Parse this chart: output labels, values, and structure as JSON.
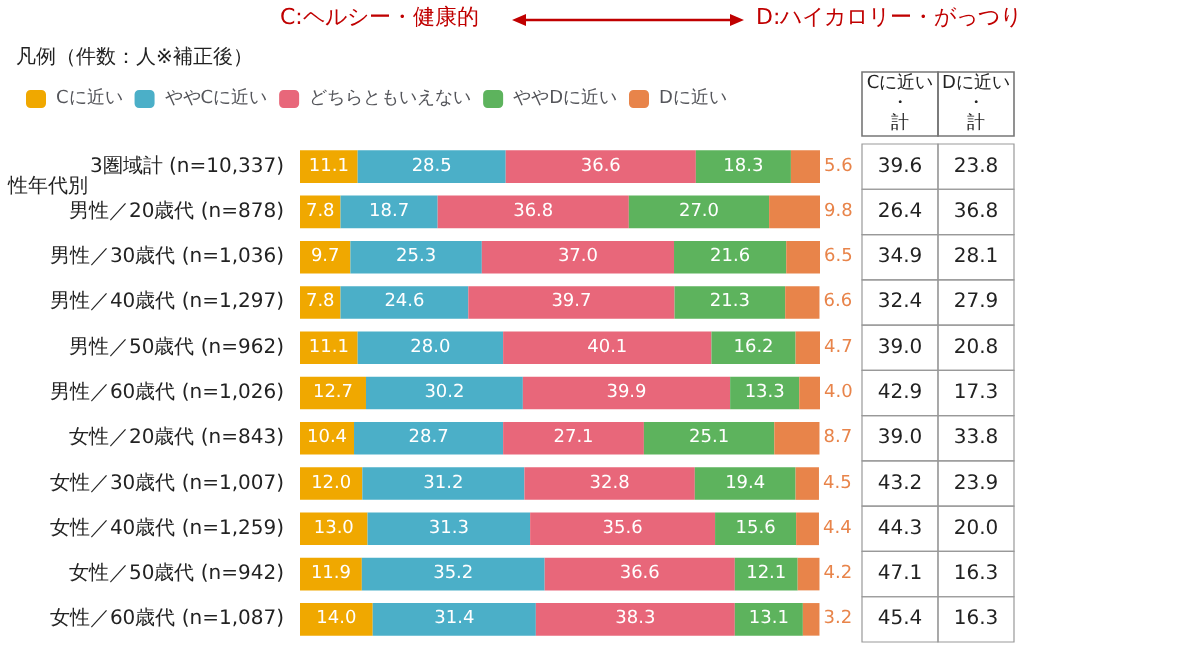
{
  "chart_data": {
    "type": "bar",
    "orientation": "horizontal",
    "stacked": true,
    "legend": "top",
    "legend_title": "凡例（件数：人※補正後）",
    "categories": [
      "3圏域計 (n=10,337)",
      "男性／20歳代 (n=878)",
      "男性／30歳代 (n=1,036)",
      "男性／40歳代 (n=1,297)",
      "男性／50歳代 (n=962)",
      "男性／60歳代 (n=1,026)",
      "女性／20歳代 (n=843)",
      "女性／30歳代 (n=1,007)",
      "女性／40歳代 (n=1,259)",
      "女性／50歳代 (n=942)",
      "女性／60歳代 (n=1,087)"
    ],
    "series": [
      {
        "name": "Cに近い",
        "color": "#f0a800",
        "values": [
          11.1,
          7.8,
          9.7,
          7.8,
          11.1,
          12.7,
          10.4,
          12.0,
          13.0,
          11.9,
          14.0
        ],
        "value_labels": [
          "11.1",
          "7.8",
          "9.7",
          "7.8",
          "11.1",
          "12.7",
          "10.4",
          "12.0",
          "13.0",
          "11.9",
          "14.0"
        ]
      },
      {
        "name": "ややCに近い",
        "color": "#4bafc8",
        "values": [
          28.5,
          18.7,
          25.3,
          24.6,
          28.0,
          30.2,
          28.7,
          31.2,
          31.3,
          35.2,
          31.4
        ],
        "value_labels": [
          "28.5",
          "18.7",
          "25.3",
          "24.6",
          "28.0",
          "30.2",
          "28.7",
          "31.2",
          "31.3",
          "35.2",
          "31.4"
        ]
      },
      {
        "name": "どちらともいえない",
        "color": "#e8677a",
        "values": [
          36.6,
          36.8,
          37.0,
          39.7,
          40.1,
          39.9,
          27.1,
          32.8,
          35.6,
          36.6,
          38.3
        ],
        "value_labels": [
          "36.6",
          "36.8",
          "37.0",
          "39.7",
          "40.1",
          "39.9",
          "27.1",
          "32.8",
          "35.6",
          "36.6",
          "38.3"
        ]
      },
      {
        "name": "ややDに近い",
        "color": "#5db35d",
        "values": [
          18.3,
          27.0,
          21.6,
          21.3,
          16.2,
          13.3,
          25.1,
          19.4,
          15.6,
          12.1,
          13.1
        ],
        "value_labels": [
          "18.3",
          "27.0",
          "21.6",
          "21.3",
          "16.2",
          "13.3",
          "25.1",
          "19.4",
          "15.6",
          "12.1",
          "13.1"
        ]
      },
      {
        "name": "Dに近い",
        "color": "#e8844a",
        "values": [
          5.6,
          9.8,
          6.5,
          6.6,
          4.7,
          4.0,
          8.7,
          4.5,
          4.4,
          4.2,
          3.2
        ],
        "value_labels": [
          "5.6",
          "9.8",
          "6.5",
          "6.6",
          "4.7",
          "4.0",
          "8.7",
          "4.5",
          "4.4",
          "4.2",
          "3.2"
        ]
      }
    ],
    "annotations": [
      "C:ヘルシー・健康的",
      "D:ハイカロリー・がっつり",
      "Cに近い・計",
      "Dに近い・計",
      "性年代別",
      "39.6",
      "23.8",
      "26.4",
      "36.8",
      "34.9",
      "28.1",
      "32.4",
      "27.9",
      "39.0",
      "20.8",
      "42.9",
      "17.3",
      "39.0",
      "33.8",
      "43.2",
      "23.9",
      "44.3",
      "20.0",
      "47.1",
      "16.3",
      "45.4",
      "16.3"
    ]
  }
}
